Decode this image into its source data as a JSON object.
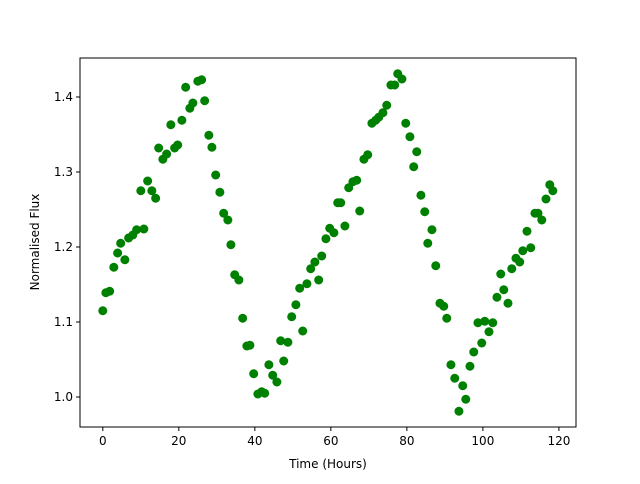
{
  "chart_data": {
    "type": "scatter",
    "xlabel": "Time (Hours)",
    "ylabel": "Normalised Flux",
    "color": "#008000",
    "x": [
      0,
      0.8,
      1.8,
      2.9,
      3.9,
      4.7,
      5.8,
      6.8,
      7.9,
      8.9,
      10,
      10.8,
      11.8,
      12.9,
      13.9,
      14.7,
      15.8,
      16.8,
      17.9,
      18.9,
      19.7,
      20.8,
      21.8,
      22.9,
      23.7,
      25,
      26,
      26.8,
      27.9,
      28.7,
      29.7,
      30.8,
      31.8,
      32.9,
      33.7,
      34.7,
      35.8,
      36.8,
      37.9,
      38.7,
      39.7,
      40.8,
      41.8,
      42.6,
      43.7,
      44.7,
      45.8,
      46.8,
      47.6,
      48.7,
      49.7,
      50.8,
      51.8,
      52.6,
      53.7,
      54.7,
      55.8,
      56.8,
      57.6,
      58.7,
      59.7,
      60.8,
      61.8,
      62.6,
      63.7,
      64.7,
      65.8,
      66.8,
      67.6,
      68.7,
      69.7,
      70.8,
      71.8,
      72.6,
      73.7,
      74.7,
      75.8,
      76.8,
      77.6,
      78.7,
      79.7,
      80.8,
      81.8,
      82.6,
      83.7,
      84.7,
      85.5,
      86.6,
      87.6,
      88.7,
      89.7,
      90.5,
      91.6,
      92.6,
      93.7,
      94.7,
      95.5,
      96.6,
      97.6,
      98.7,
      99.7,
      100.5,
      101.6,
      102.6,
      103.7,
      104.7,
      105.5,
      106.6,
      107.6,
      108.7,
      109.7,
      110.5,
      111.6,
      112.6,
      113.7,
      114.5,
      115.5,
      116.6,
      117.6,
      118.4
    ],
    "values": [
      1.115,
      1.139,
      1.141,
      1.173,
      1.192,
      1.205,
      1.183,
      1.212,
      1.216,
      1.223,
      1.275,
      1.224,
      1.288,
      1.275,
      1.265,
      1.332,
      1.317,
      1.324,
      1.363,
      1.332,
      1.336,
      1.369,
      1.413,
      1.385,
      1.392,
      1.421,
      1.423,
      1.395,
      1.349,
      1.333,
      1.296,
      1.273,
      1.245,
      1.236,
      1.203,
      1.163,
      1.156,
      1.105,
      1.068,
      1.069,
      1.031,
      1.004,
      1.007,
      1.005,
      1.043,
      1.029,
      1.02,
      1.075,
      1.048,
      1.073,
      1.107,
      1.123,
      1.145,
      1.088,
      1.151,
      1.171,
      1.18,
      1.156,
      1.188,
      1.211,
      1.225,
      1.219,
      1.259,
      1.259,
      1.228,
      1.279,
      1.287,
      1.289,
      1.248,
      1.317,
      1.323,
      1.365,
      1.369,
      1.373,
      1.379,
      1.389,
      1.416,
      1.416,
      1.431,
      1.424,
      1.365,
      1.347,
      1.307,
      1.327,
      1.269,
      1.247,
      1.205,
      1.223,
      1.175,
      1.125,
      1.121,
      1.105,
      1.043,
      1.025,
      0.981,
      1.015,
      0.997,
      1.041,
      1.06,
      1.099,
      1.072,
      1.101,
      1.087,
      1.099,
      1.133,
      1.164,
      1.143,
      1.125,
      1.171,
      1.185,
      1.18,
      1.195,
      1.221,
      1.199,
      1.245,
      1.245,
      1.236,
      1.264,
      1.283,
      1.275
    ],
    "xlim": [
      -6,
      124.5
    ],
    "ylim": [
      0.96,
      1.452
    ],
    "xticks": [
      0,
      20,
      40,
      60,
      80,
      100,
      120
    ],
    "yticks": [
      {
        "value": 1.0,
        "label": "1.0"
      },
      {
        "value": 1.1,
        "label": "1.1"
      },
      {
        "value": 1.2,
        "label": "1.2"
      },
      {
        "value": 1.3,
        "label": "1.3"
      },
      {
        "value": 1.4,
        "label": "1.4"
      }
    ]
  }
}
